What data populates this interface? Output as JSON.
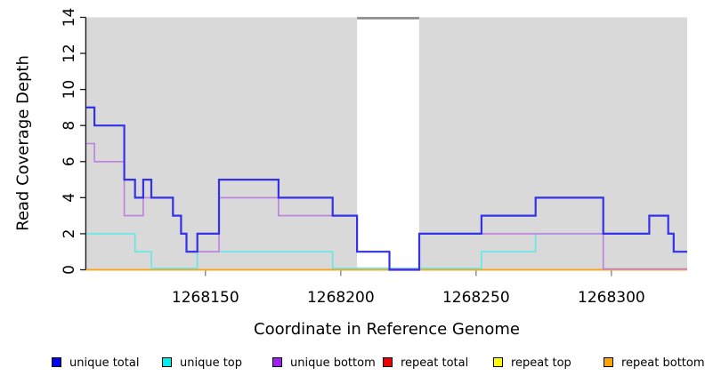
{
  "figure": {
    "xlabel": "Coordinate in Reference Genome",
    "ylabel": "Read Coverage Depth"
  },
  "chart_data": {
    "type": "line",
    "subtype": "step-coverage-plot",
    "title": "",
    "xlabel": "Coordinate in Reference Genome",
    "ylabel": "Read Coverage Depth",
    "grid": false,
    "legend_position": "bottom",
    "plot_background_color": "#d9d9d9",
    "gap_band_color": "#ffffff",
    "gap_top_bar_color": "#8a8a8a",
    "x_axis": {
      "range": [
        1268106,
        1268328
      ],
      "ticks": [
        1268150,
        1268200,
        1268250,
        1268300
      ],
      "tick_color": "#7f7f7f"
    },
    "y_axis": {
      "range": [
        0,
        14
      ],
      "ticks": [
        0,
        2,
        4,
        6,
        8,
        10,
        12,
        14
      ],
      "axis_color": "#1a1a1a"
    },
    "gap_region": {
      "from": 1268206,
      "to": 1268229
    },
    "series": [
      {
        "name": "unique total",
        "line_color": "#3232E8",
        "legend_color": "#0000EE",
        "line_width": 2.2,
        "points": [
          [
            1268106,
            9
          ],
          [
            1268109,
            8
          ],
          [
            1268120,
            5
          ],
          [
            1268124,
            4
          ],
          [
            1268127,
            5
          ],
          [
            1268130,
            4
          ],
          [
            1268138,
            3
          ],
          [
            1268141,
            2
          ],
          [
            1268143,
            1
          ],
          [
            1268147,
            2
          ],
          [
            1268155,
            5
          ],
          [
            1268177,
            4
          ],
          [
            1268197,
            3
          ],
          [
            1268206,
            1
          ],
          [
            1268218,
            0
          ],
          [
            1268229,
            2
          ],
          [
            1268252,
            3
          ],
          [
            1268272,
            4
          ],
          [
            1268297,
            2
          ],
          [
            1268314,
            3
          ],
          [
            1268321,
            2
          ],
          [
            1268323,
            1
          ],
          [
            1268328,
            1
          ]
        ]
      },
      {
        "name": "unique top",
        "line_color": "#62E8E8",
        "legend_color": "#00EEEE",
        "line_width": 1.6,
        "points": [
          [
            1268106,
            2
          ],
          [
            1268124,
            1
          ],
          [
            1268130,
            0
          ],
          [
            1268147,
            1
          ],
          [
            1268197,
            0
          ],
          [
            1268252,
            1
          ],
          [
            1268272,
            2
          ],
          [
            1268314,
            3
          ],
          [
            1268321,
            2
          ],
          [
            1268323,
            1
          ],
          [
            1268328,
            1
          ]
        ]
      },
      {
        "name": "unique bottom",
        "line_color": "#BE7FE0",
        "legend_color": "#A020F0",
        "line_width": 1.6,
        "points": [
          [
            1268106,
            7
          ],
          [
            1268109,
            6
          ],
          [
            1268120,
            3
          ],
          [
            1268127,
            4
          ],
          [
            1268138,
            3
          ],
          [
            1268141,
            2
          ],
          [
            1268143,
            1
          ],
          [
            1268155,
            4
          ],
          [
            1268177,
            3
          ],
          [
            1268206,
            1
          ],
          [
            1268218,
            0
          ],
          [
            1268229,
            2
          ],
          [
            1268297,
            0
          ],
          [
            1268328,
            0
          ]
        ]
      },
      {
        "name": "repeat total",
        "line_color": "#E83030",
        "legend_color": "#EE0000",
        "line_width": 1.5,
        "points": [
          [
            1268106,
            0
          ],
          [
            1268328,
            0
          ]
        ]
      },
      {
        "name": "repeat top",
        "line_color": "#F5F53C",
        "legend_color": "#FFFF00",
        "line_width": 1.5,
        "points": [
          [
            1268106,
            0
          ],
          [
            1268328,
            0
          ]
        ]
      },
      {
        "name": "repeat bottom",
        "line_color": "#FFA319",
        "legend_color": "#FFA500",
        "line_width": 1.8,
        "points": [
          [
            1268106,
            0
          ],
          [
            1268328,
            0
          ]
        ]
      }
    ]
  }
}
